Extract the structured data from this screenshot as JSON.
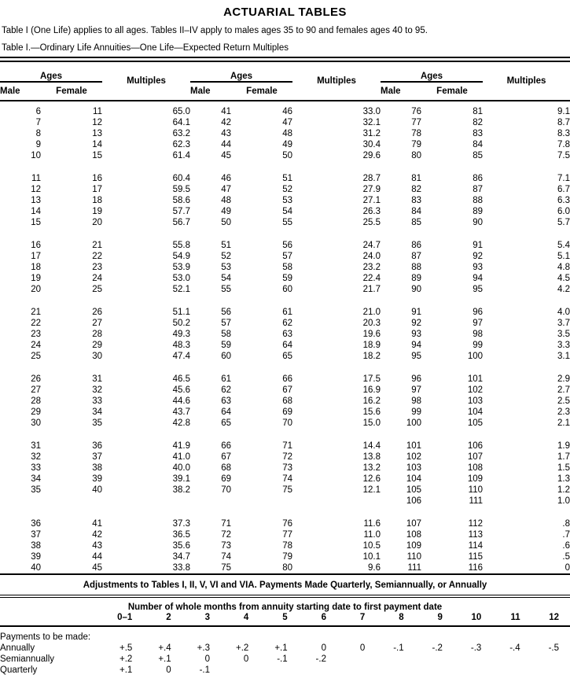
{
  "title": "ACTUARIAL TABLES",
  "intro": "Table I (One Life) applies to all ages. Tables II–IV apply to males ages 35 to 90 and females ages 40 to 95.",
  "table_caption": "Table I.—Ordinary Life Annuities—One Life—Expected Return Multiples",
  "table1": {
    "ages_label": "Ages",
    "male_label": "Male",
    "female_label": "Female",
    "multiples_label": "Multiples",
    "columns_per_group": [
      "Male",
      "Female",
      "Multiples"
    ],
    "blocks": [
      [
        [
          "6",
          "11",
          "65.0",
          "41",
          "46",
          "33.0",
          "76",
          "81",
          "9.1"
        ],
        [
          "7",
          "12",
          "64.1",
          "42",
          "47",
          "32.1",
          "77",
          "82",
          "8.7"
        ],
        [
          "8",
          "13",
          "63.2",
          "43",
          "48",
          "31.2",
          "78",
          "83",
          "8.3"
        ],
        [
          "9",
          "14",
          "62.3",
          "44",
          "49",
          "30.4",
          "79",
          "84",
          "7.8"
        ],
        [
          "10",
          "15",
          "61.4",
          "45",
          "50",
          "29.6",
          "80",
          "85",
          "7.5"
        ]
      ],
      [
        [
          "11",
          "16",
          "60.4",
          "46",
          "51",
          "28.7",
          "81",
          "86",
          "7.1"
        ],
        [
          "12",
          "17",
          "59.5",
          "47",
          "52",
          "27.9",
          "82",
          "87",
          "6.7"
        ],
        [
          "13",
          "18",
          "58.6",
          "48",
          "53",
          "27.1",
          "83",
          "88",
          "6.3"
        ],
        [
          "14",
          "19",
          "57.7",
          "49",
          "54",
          "26.3",
          "84",
          "89",
          "6.0"
        ],
        [
          "15",
          "20",
          "56.7",
          "50",
          "55",
          "25.5",
          "85",
          "90",
          "5.7"
        ]
      ],
      [
        [
          "16",
          "21",
          "55.8",
          "51",
          "56",
          "24.7",
          "86",
          "91",
          "5.4"
        ],
        [
          "17",
          "22",
          "54.9",
          "52",
          "57",
          "24.0",
          "87",
          "92",
          "5.1"
        ],
        [
          "18",
          "23",
          "53.9",
          "53",
          "58",
          "23.2",
          "88",
          "93",
          "4.8"
        ],
        [
          "19",
          "24",
          "53.0",
          "54",
          "59",
          "22.4",
          "89",
          "94",
          "4.5"
        ],
        [
          "20",
          "25",
          "52.1",
          "55",
          "60",
          "21.7",
          "90",
          "95",
          "4.2"
        ]
      ],
      [
        [
          "21",
          "26",
          "51.1",
          "56",
          "61",
          "21.0",
          "91",
          "96",
          "4.0"
        ],
        [
          "22",
          "27",
          "50.2",
          "57",
          "62",
          "20.3",
          "92",
          "97",
          "3.7"
        ],
        [
          "23",
          "28",
          "49.3",
          "58",
          "63",
          "19.6",
          "93",
          "98",
          "3.5"
        ],
        [
          "24",
          "29",
          "48.3",
          "59",
          "64",
          "18.9",
          "94",
          "99",
          "3.3"
        ],
        [
          "25",
          "30",
          "47.4",
          "60",
          "65",
          "18.2",
          "95",
          "100",
          "3.1"
        ]
      ],
      [
        [
          "26",
          "31",
          "46.5",
          "61",
          "66",
          "17.5",
          "96",
          "101",
          "2.9"
        ],
        [
          "27",
          "32",
          "45.6",
          "62",
          "67",
          "16.9",
          "97",
          "102",
          "2.7"
        ],
        [
          "28",
          "33",
          "44.6",
          "63",
          "68",
          "16.2",
          "98",
          "103",
          "2.5"
        ],
        [
          "29",
          "34",
          "43.7",
          "64",
          "69",
          "15.6",
          "99",
          "104",
          "2.3"
        ],
        [
          "30",
          "35",
          "42.8",
          "65",
          "70",
          "15.0",
          "100",
          "105",
          "2.1"
        ]
      ],
      [
        [
          "31",
          "36",
          "41.9",
          "66",
          "71",
          "14.4",
          "101",
          "106",
          "1.9"
        ],
        [
          "32",
          "37",
          "41.0",
          "67",
          "72",
          "13.8",
          "102",
          "107",
          "1.7"
        ],
        [
          "33",
          "38",
          "40.0",
          "68",
          "73",
          "13.2",
          "103",
          "108",
          "1.5"
        ],
        [
          "34",
          "39",
          "39.1",
          "69",
          "74",
          "12.6",
          "104",
          "109",
          "1.3"
        ],
        [
          "35",
          "40",
          "38.2",
          "70",
          "75",
          "12.1",
          "105",
          "110",
          "1.2"
        ],
        [
          "",
          "",
          "",
          "",
          "",
          "",
          "106",
          "111",
          "1.0"
        ]
      ],
      [
        [
          "36",
          "41",
          "37.3",
          "71",
          "76",
          "11.6",
          "107",
          "112",
          ".8"
        ],
        [
          "37",
          "42",
          "36.5",
          "72",
          "77",
          "11.0",
          "108",
          "113",
          ".7"
        ],
        [
          "38",
          "43",
          "35.6",
          "73",
          "78",
          "10.5",
          "109",
          "114",
          ".6"
        ],
        [
          "39",
          "44",
          "34.7",
          "74",
          "79",
          "10.1",
          "110",
          "115",
          ".5"
        ],
        [
          "40",
          "45",
          "33.8",
          "75",
          "80",
          "9.6",
          "111",
          "116",
          "0"
        ]
      ]
    ]
  },
  "adjustments": {
    "title": "Adjustments to Tables I, II, V, VI and VIA. Payments Made Quarterly, Semiannually, or Annually",
    "months_header": "Number of whole months from annuity starting date to first payment date",
    "month_columns": [
      "0–1",
      "2",
      "3",
      "4",
      "5",
      "6",
      "7",
      "8",
      "9",
      "10",
      "11",
      "12"
    ],
    "payments_label": "Payments to be made:",
    "rows": [
      {
        "label": "Annually",
        "values": [
          "+.5",
          "+.4",
          "+.3",
          "+.2",
          "+.1",
          "0",
          "0",
          "-.1",
          "-.2",
          "-.3",
          "-.4",
          "-.5"
        ]
      },
      {
        "label": "Semiannually",
        "values": [
          "+.2",
          "+.1",
          "0",
          "0",
          "-.1",
          "-.2",
          "",
          "",
          "",
          "",
          "",
          ""
        ]
      },
      {
        "label": "Quarterly",
        "values": [
          "+.1",
          "0",
          "-.1",
          "",
          "",
          "",
          "",
          "",
          "",
          "",
          "",
          ""
        ]
      }
    ]
  }
}
